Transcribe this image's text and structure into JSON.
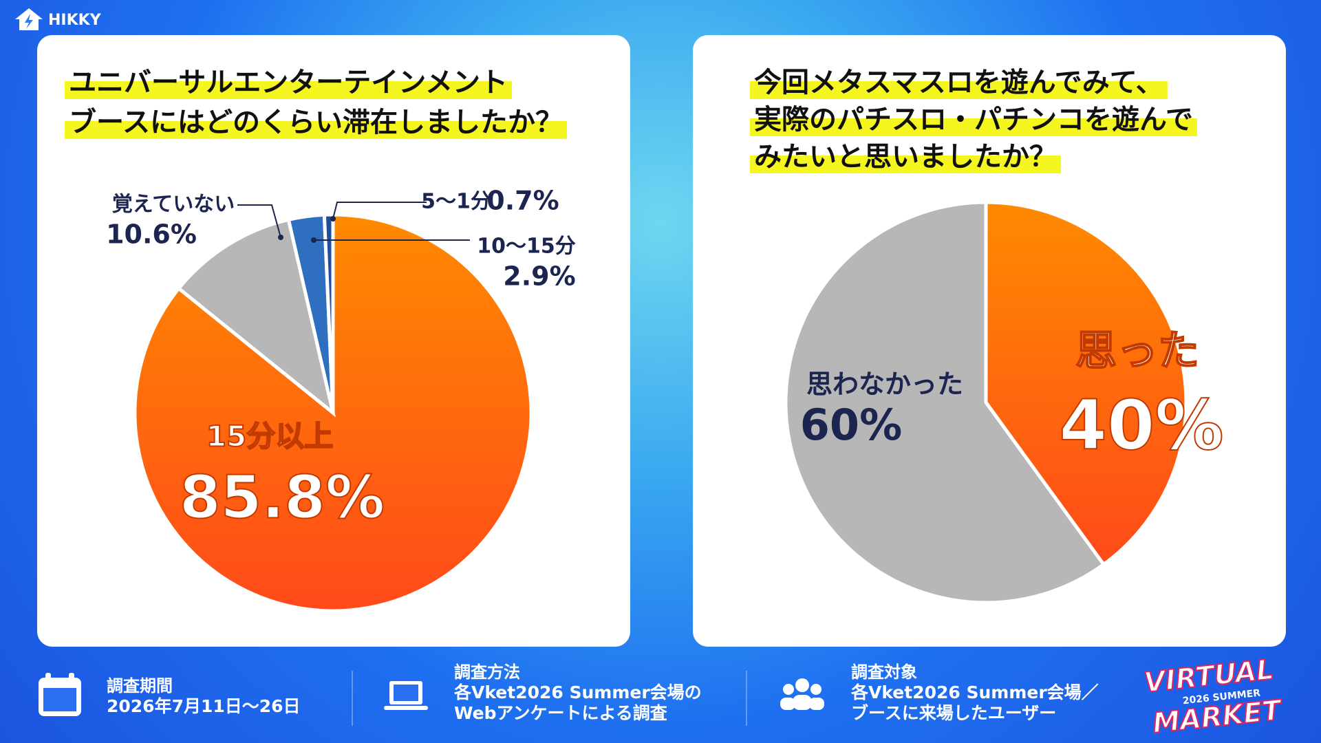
{
  "brand": {
    "logo": "HIKKY",
    "event_logo": [
      "VIRTUAL",
      "2026 SUMMER",
      "MARKET"
    ]
  },
  "chart_data": [
    {
      "type": "pie",
      "title": [
        "ユニバーサルエンターテインメント",
        "ブースにはどのくらい滞在しましたか？"
      ],
      "categories": [
        "15分以上",
        "覚えていない",
        "10〜15分",
        "5〜1分"
      ],
      "values": [
        85.8,
        10.6,
        2.9,
        0.7
      ],
      "value_labels": [
        "85.8%",
        "10.6%",
        "2.9%",
        "0.7%"
      ],
      "colors": [
        "#ff6a10",
        "#b7b7b7",
        "#2f6fbf",
        "#1f4f9a"
      ]
    },
    {
      "type": "pie",
      "title": [
        "今回メタスマスロを遊んでみて、",
        "実際のパチスロ・パチンコを遊んで",
        "みたいと思いましたか？"
      ],
      "categories": [
        "思った",
        "思わなかった"
      ],
      "values": [
        40,
        60
      ],
      "value_labels": [
        "40%",
        "60%"
      ],
      "colors": [
        "#ff6a10",
        "#b7b7b7"
      ]
    }
  ],
  "footer": [
    {
      "heading": "調査期間",
      "lines": [
        "2026年7月11日〜26日"
      ]
    },
    {
      "heading": "調査方法",
      "lines": [
        "各Vket2026 Summer会場の",
        "Webアンケートによる調査"
      ]
    },
    {
      "heading": "調査対象",
      "lines": [
        "各Vket2026 Summer会場／",
        "ブースに来場したユーザー"
      ]
    }
  ]
}
